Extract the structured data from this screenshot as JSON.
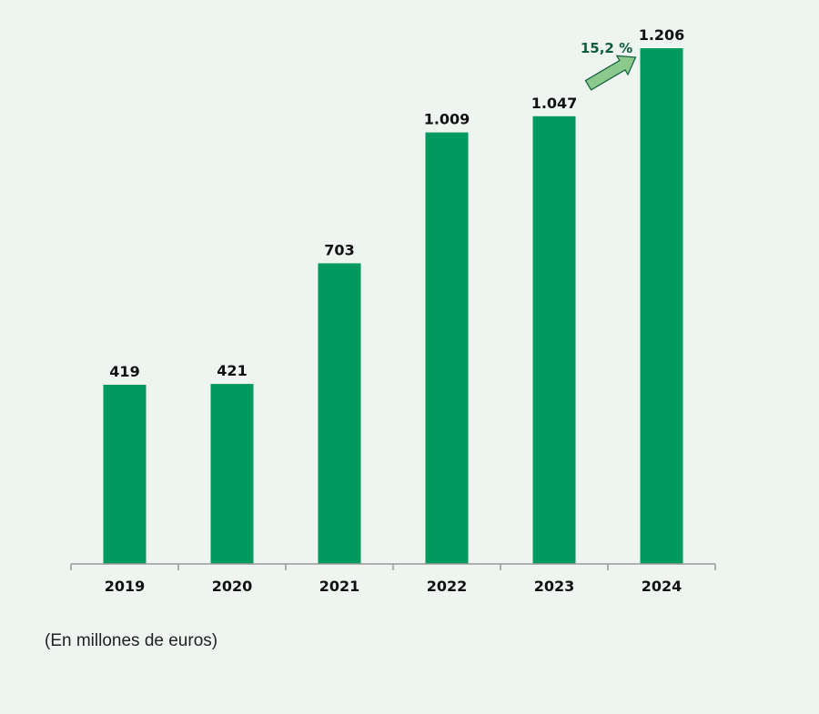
{
  "chart_data": {
    "type": "bar",
    "categories": [
      "2019",
      "2020",
      "2021",
      "2022",
      "2023",
      "2024"
    ],
    "values": [
      419,
      421,
      703,
      1009,
      1047,
      1206
    ],
    "value_labels": [
      "419",
      "421",
      "703",
      "1.009",
      "1.047",
      "1.206"
    ],
    "title": "",
    "xlabel": "",
    "ylabel": "",
    "ylim": [
      0,
      1206
    ],
    "grid": false,
    "legend": "none",
    "annotation": {
      "text": "15,2 %",
      "from_category": "2023",
      "to_category": "2024",
      "arrow_color": "#8cc98c"
    },
    "unit_note": "(En millones de euros)",
    "colors": {
      "bar": "#009a5e",
      "annotation_text": "#0d5c3c",
      "axis": "#999999"
    }
  }
}
